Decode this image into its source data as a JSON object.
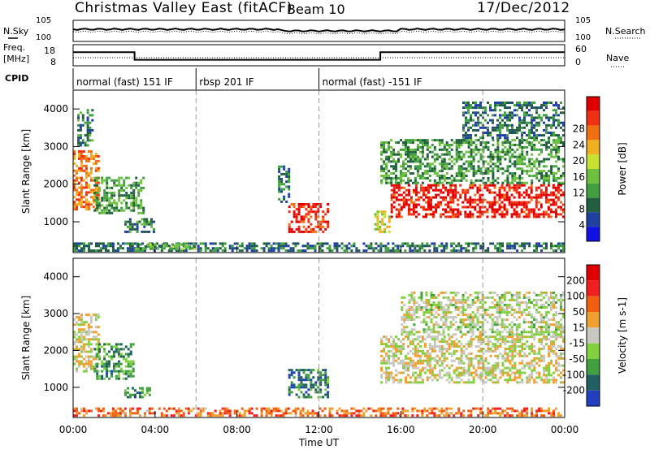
{
  "header": {
    "title": "Christmas Valley East (fitACF)",
    "beam": "Beam 10",
    "date": "17/Dec/2012"
  },
  "top_panels": {
    "nsky_label": "N.Sky",
    "nsearch_label": "N.Search",
    "noise_ticks": [
      "10^5",
      "10^0"
    ],
    "freq_label": "Freq.",
    "freq_unit": "[MHz]",
    "freq_ticks": [
      "18",
      "8"
    ],
    "nave_label": "Nave",
    "nave_ticks": [
      "60",
      "0"
    ],
    "cpid_label": "CPID",
    "cpid_segments": [
      {
        "label": "normal (fast) 151 IF",
        "start": 0,
        "end": 6
      },
      {
        "label": "rbsp 201 IF",
        "start": 6,
        "end": 12
      },
      {
        "label": "normal (fast) -151 IF",
        "start": 12,
        "end": 24
      }
    ],
    "freq_series": {
      "x": [
        0,
        3,
        3,
        15,
        15,
        24
      ],
      "y": [
        15,
        15,
        10,
        10,
        15,
        15
      ]
    }
  },
  "chart_data": [
    {
      "type": "heatmap",
      "name": "power",
      "ylabel": "Slant Range [km]",
      "yticks": [
        1000,
        2000,
        3000,
        4000
      ],
      "ylim": [
        180,
        4500
      ],
      "xlim": [
        0,
        24
      ],
      "colorbar": {
        "label": "Power [dB]",
        "ticks": [
          4,
          8,
          12,
          16,
          20,
          24,
          28
        ],
        "colors": [
          "#1010e0",
          "#2040a0",
          "#206040",
          "#40a040",
          "#70c040",
          "#c8e030",
          "#f0b020",
          "#f07010",
          "#f03010",
          "#e00000"
        ]
      },
      "regions": [
        {
          "t0": 0.0,
          "t1": 1.3,
          "r0": 1300,
          "r1": 2900,
          "level": 0.75
        },
        {
          "t0": 0.2,
          "t1": 1.0,
          "r0": 3000,
          "r1": 4000,
          "level": 0.3
        },
        {
          "t0": 1.0,
          "t1": 3.5,
          "r0": 1200,
          "r1": 2200,
          "level": 0.35
        },
        {
          "t0": 2.5,
          "t1": 4.0,
          "r0": 700,
          "r1": 1100,
          "level": 0.3
        },
        {
          "t0": 0.0,
          "t1": 24.0,
          "r0": 200,
          "r1": 450,
          "level": 0.25
        },
        {
          "t0": 3.0,
          "t1": 6.0,
          "r0": 250,
          "r1": 420,
          "level": 0.4
        },
        {
          "t0": 10.5,
          "t1": 12.5,
          "r0": 700,
          "r1": 1500,
          "level": 0.9
        },
        {
          "t0": 10.0,
          "t1": 10.6,
          "r0": 1500,
          "r1": 2500,
          "level": 0.25
        },
        {
          "t0": 14.7,
          "t1": 15.5,
          "r0": 700,
          "r1": 1300,
          "level": 0.55
        },
        {
          "t0": 15.5,
          "t1": 24.0,
          "r0": 1100,
          "r1": 2000,
          "level": 0.92
        },
        {
          "t0": 15.0,
          "t1": 24.0,
          "r0": 2000,
          "r1": 3200,
          "level": 0.35
        },
        {
          "t0": 19.0,
          "t1": 24.0,
          "r0": 3200,
          "r1": 4200,
          "level": 0.25
        }
      ]
    },
    {
      "type": "heatmap",
      "name": "velocity",
      "ylabel": "Slant Range [km]",
      "xlabel": "Time UT",
      "xticks": [
        "00:00",
        "04:00",
        "08:00",
        "12:00",
        "16:00",
        "20:00",
        "00:00"
      ],
      "yticks": [
        1000,
        2000,
        3000,
        4000
      ],
      "ylim": [
        180,
        4500
      ],
      "xlim": [
        0,
        24
      ],
      "colorbar": {
        "label": "Velocity [m s-1]",
        "ticks": [
          200,
          100,
          50,
          15,
          -15,
          -50,
          -100,
          -200
        ],
        "colors": [
          "#2040c0",
          "#206060",
          "#40a040",
          "#80d040",
          "#c8c8c0",
          "#f0a030",
          "#f06010",
          "#f02020",
          "#e00000"
        ]
      },
      "regions": [
        {
          "t0": 0.0,
          "t1": 1.3,
          "r0": 1400,
          "r1": 3000,
          "level": 0.5
        },
        {
          "t0": 1.0,
          "t1": 3.0,
          "r0": 1200,
          "r1": 2200,
          "level": 0.25
        },
        {
          "t0": 2.5,
          "t1": 3.8,
          "r0": 700,
          "r1": 1000,
          "level": 0.25
        },
        {
          "t0": 0.0,
          "t1": 24.0,
          "r0": 200,
          "r1": 450,
          "level": 0.7
        },
        {
          "t0": 10.5,
          "t1": 12.5,
          "r0": 700,
          "r1": 1500,
          "level": 0.2
        },
        {
          "t0": 15.0,
          "t1": 24.0,
          "r0": 1100,
          "r1": 2400,
          "level": 0.5
        },
        {
          "t0": 16.0,
          "t1": 24.0,
          "r0": 2400,
          "r1": 3600,
          "level": 0.45
        }
      ]
    }
  ]
}
